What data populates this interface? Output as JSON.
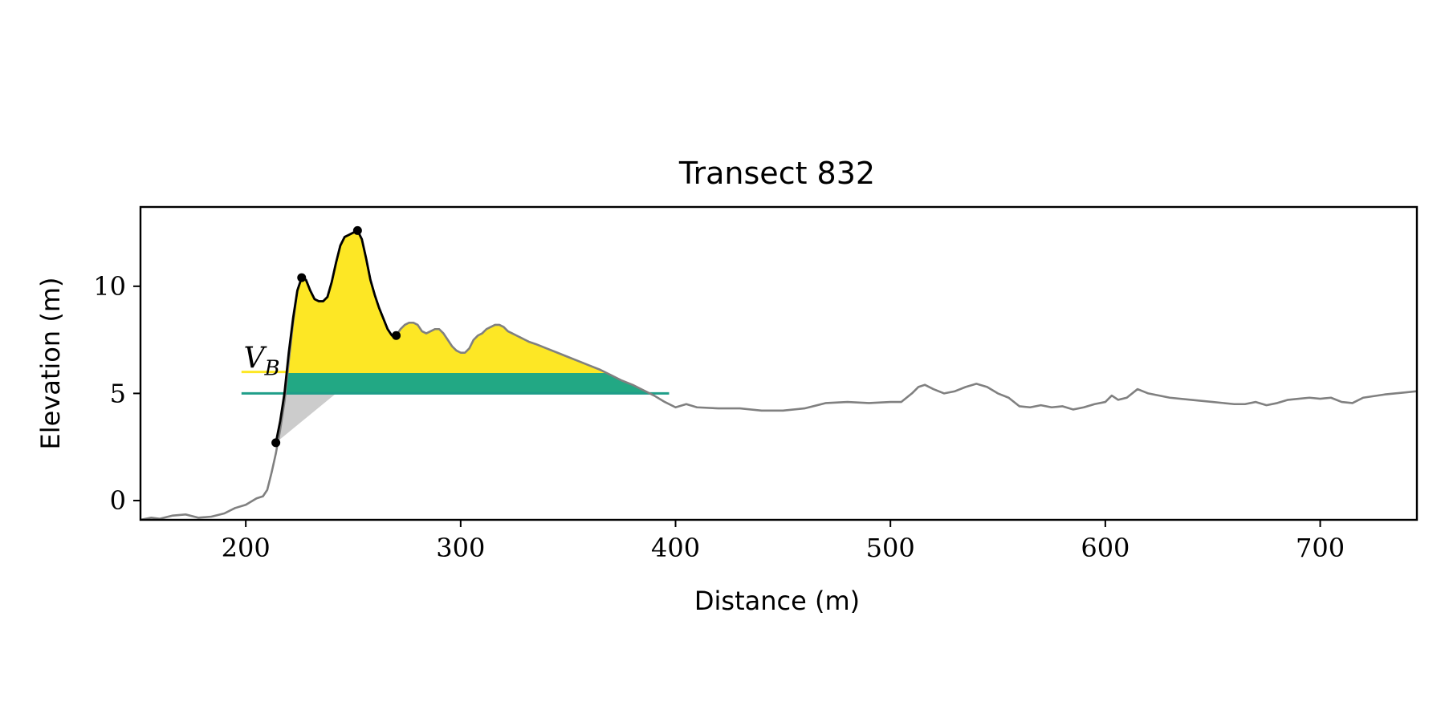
{
  "chart_data": {
    "type": "line",
    "title": "Transect 832",
    "xlabel": "Distance (m)",
    "ylabel": "Elevation (m)",
    "xlim": [
      151,
      745
    ],
    "ylim": [
      -0.9,
      13.7
    ],
    "xticks": [
      200,
      300,
      400,
      500,
      600,
      700
    ],
    "yticks": [
      0,
      5,
      10
    ],
    "grid": false,
    "colors": {
      "profile": "#808080",
      "dune": "#000000",
      "upper_fill": "#fde725",
      "band_fill": "#22a884",
      "lower_fill": "#cccccc",
      "line_5": "#1f9e89",
      "line_6": "#fde725"
    },
    "profile": {
      "x": [
        151,
        156,
        160,
        166,
        172,
        178,
        184,
        190,
        195,
        200,
        205,
        208,
        210,
        212,
        214,
        216,
        218,
        220,
        222,
        224,
        226,
        228,
        230,
        232,
        234,
        236,
        238,
        240,
        242,
        244,
        246,
        248,
        250,
        252,
        254,
        256,
        258,
        260,
        262,
        264,
        266,
        268,
        270,
        272,
        274,
        276,
        278,
        280,
        282,
        284,
        286,
        288,
        290,
        292,
        294,
        296,
        298,
        300,
        302,
        304,
        306,
        308,
        310,
        312,
        314,
        316,
        318,
        320,
        322,
        324,
        326,
        328,
        330,
        332,
        335,
        340,
        345,
        350,
        355,
        360,
        365,
        370,
        375,
        380,
        385,
        390,
        395,
        400,
        405,
        410,
        420,
        430,
        440,
        450,
        460,
        470,
        480,
        490,
        500,
        505,
        510,
        513,
        516,
        520,
        525,
        530,
        535,
        540,
        545,
        550,
        555,
        560,
        565,
        570,
        575,
        580,
        585,
        590,
        595,
        600,
        603,
        606,
        610,
        615,
        620,
        630,
        640,
        650,
        660,
        665,
        670,
        675,
        680,
        685,
        690,
        695,
        700,
        705,
        710,
        715,
        720,
        730,
        740,
        745
      ],
      "y": [
        -0.9,
        -0.8,
        -0.85,
        -0.7,
        -0.65,
        -0.8,
        -0.75,
        -0.6,
        -0.35,
        -0.2,
        0.1,
        0.2,
        0.5,
        1.3,
        2.2,
        3.3,
        4.6,
        6.5,
        8.3,
        9.8,
        10.4,
        10.3,
        9.8,
        9.4,
        9.3,
        9.3,
        9.5,
        10.2,
        11.1,
        11.9,
        12.3,
        12.4,
        12.5,
        12.6,
        12.2,
        11.3,
        10.3,
        9.6,
        9.0,
        8.5,
        8.0,
        7.7,
        7.7,
        8.0,
        8.2,
        8.3,
        8.3,
        8.2,
        7.9,
        7.8,
        7.9,
        8.0,
        8.0,
        7.8,
        7.5,
        7.2,
        7.0,
        6.9,
        6.9,
        7.1,
        7.5,
        7.7,
        7.8,
        8.0,
        8.1,
        8.2,
        8.2,
        8.1,
        7.9,
        7.8,
        7.7,
        7.6,
        7.5,
        7.4,
        7.3,
        7.1,
        6.9,
        6.7,
        6.5,
        6.3,
        6.1,
        5.85,
        5.6,
        5.4,
        5.15,
        4.9,
        4.6,
        4.35,
        4.5,
        4.35,
        4.3,
        4.3,
        4.2,
        4.2,
        4.3,
        4.55,
        4.6,
        4.55,
        4.6,
        4.6,
        5.0,
        5.3,
        5.4,
        5.2,
        5.0,
        5.1,
        5.3,
        5.45,
        5.3,
        5.0,
        4.8,
        4.4,
        4.35,
        4.45,
        4.35,
        4.4,
        4.25,
        4.35,
        4.5,
        4.6,
        4.9,
        4.7,
        4.8,
        5.2,
        5.0,
        4.8,
        4.7,
        4.6,
        4.5,
        4.5,
        4.6,
        4.45,
        4.55,
        4.7,
        4.75,
        4.8,
        4.75,
        4.8,
        4.6,
        4.55,
        4.8,
        4.95,
        5.05,
        5.1
      ]
    },
    "dune_profile": {
      "x": [
        214,
        216,
        218,
        220,
        222,
        224,
        226,
        228,
        230,
        232,
        234,
        236,
        238,
        240,
        242,
        244,
        246,
        248,
        250,
        252,
        254,
        256,
        258,
        260,
        262,
        264,
        266,
        268,
        270
      ],
      "y": [
        2.7,
        3.7,
        5.0,
        6.9,
        8.5,
        9.8,
        10.4,
        10.3,
        9.8,
        9.4,
        9.3,
        9.3,
        9.5,
        10.2,
        11.1,
        11.9,
        12.3,
        12.4,
        12.5,
        12.6,
        12.2,
        11.3,
        10.3,
        9.6,
        9.0,
        8.5,
        8.0,
        7.7,
        7.7
      ]
    },
    "markers": [
      {
        "x": 214,
        "y": 2.7
      },
      {
        "x": 226,
        "y": 10.4
      },
      {
        "x": 252,
        "y": 12.6
      },
      {
        "x": 270,
        "y": 7.7
      }
    ],
    "levels": {
      "band_bottom": 5.0,
      "band_top": 5.95,
      "reference_5": {
        "xstart": 198,
        "xend": 397,
        "y": 5.0
      },
      "reference_6": {
        "xstart": 198,
        "xend": 220,
        "y": 6.0
      }
    },
    "lower_triangle": {
      "x": [
        214,
        218,
        242,
        214
      ],
      "y": [
        2.7,
        5.0,
        5.0,
        2.7
      ]
    },
    "annotation": {
      "text": "V",
      "subscript": "B",
      "x": 199,
      "y": 6.2
    }
  }
}
